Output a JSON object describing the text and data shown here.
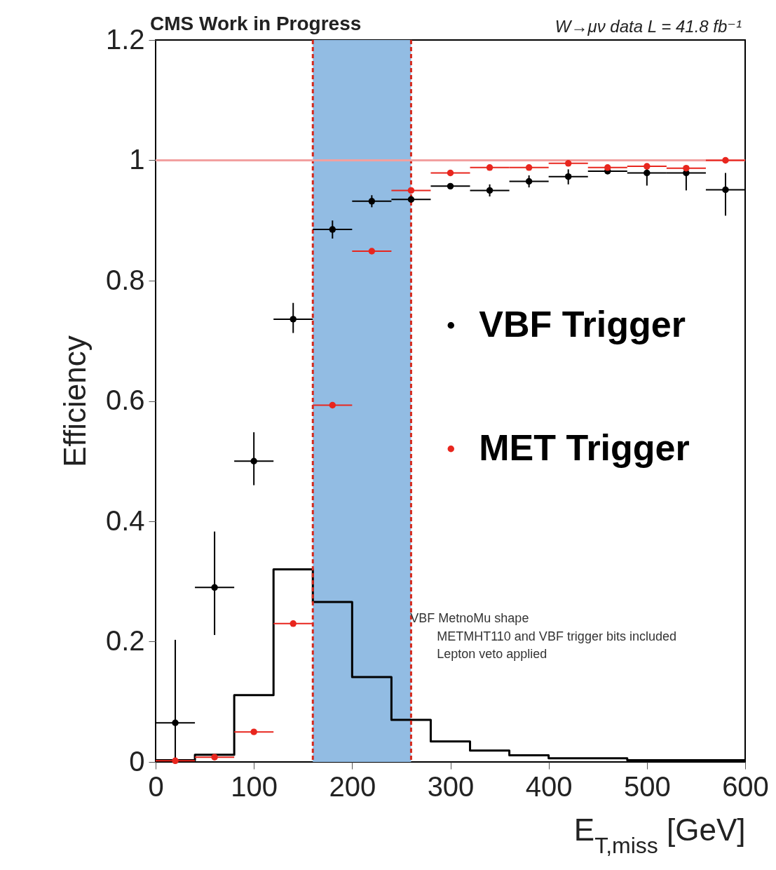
{
  "chart_data": {
    "type": "scatter",
    "title": "CMS Work in Progress",
    "subtitle": "W→μν data L = 41.8 fb⁻¹",
    "xlabel": "E$_{T,miss}$ [GeV]",
    "ylabel": "Efficiency",
    "xlim": [
      0,
      600
    ],
    "ylim": [
      0,
      1.2
    ],
    "xticks": [
      0,
      100,
      200,
      300,
      400,
      500,
      600
    ],
    "yticks": [
      0,
      0.2,
      0.4,
      0.6,
      0.8,
      1,
      1.2
    ],
    "legend": "right",
    "marker": "circle",
    "grid": false,
    "series": [
      {
        "name": "VBF Trigger",
        "color": "#000000",
        "x": [
          20,
          60,
          100,
          140,
          180,
          220,
          260,
          300,
          340,
          380,
          420,
          460,
          500,
          540,
          580
        ],
        "values": [
          0.065,
          0.29,
          0.5,
          0.736,
          0.885,
          0.932,
          0.935,
          0.957,
          0.95,
          0.965,
          0.973,
          0.982,
          0.979,
          0.979,
          0.951
        ],
        "errors": [
          [
            0,
            0.203
          ],
          [
            0.211,
            0.383
          ],
          [
            0.46,
            0.548
          ],
          [
            0.713,
            0.763
          ],
          [
            0.87,
            0.9
          ],
          [
            0.922,
            0.942
          ],
          null,
          null,
          [
            0.94,
            0.96
          ],
          [
            0.955,
            0.975
          ],
          [
            0.96,
            0.985
          ],
          null,
          [
            0.958,
            0.99
          ],
          [
            0.95,
            0.99
          ],
          [
            0.908,
            0.979
          ]
        ],
        "xerrors": [
          20,
          20,
          20,
          20,
          20,
          20,
          20,
          20,
          20,
          20,
          20,
          20,
          20,
          20,
          20
        ]
      },
      {
        "name": "MET Trigger",
        "color": "#e8261e",
        "x": [
          20,
          60,
          100,
          140,
          180,
          220,
          260,
          300,
          340,
          380,
          420,
          460,
          500,
          540,
          580
        ],
        "values": [
          0.002,
          0.008,
          0.05,
          0.23,
          0.593,
          0.849,
          0.95,
          0.979,
          0.988,
          0.988,
          0.995,
          0.988,
          0.99,
          0.987,
          1.0
        ],
        "xerrors": [
          20,
          20,
          20,
          20,
          20,
          20,
          20,
          20,
          20,
          20,
          20,
          20,
          20,
          20,
          20
        ]
      },
      {
        "type": "step",
        "marker": "none",
        "color": "#000000",
        "x": [
          0,
          40,
          80,
          120,
          160,
          200,
          240,
          280,
          320,
          360,
          400,
          480,
          600
        ],
        "values": [
          0.003,
          0.012,
          0.111,
          0.32,
          0.266,
          0.141,
          0.07,
          0.034,
          0.019,
          0.011,
          0.006,
          0.003,
          0.003
        ]
      }
    ],
    "bands": [
      {
        "axis": "x",
        "from": 160,
        "to": 260,
        "color": "#92bce3"
      }
    ],
    "ref_lines": [
      {
        "axis": "x",
        "value": 160,
        "color": "#d42a1e",
        "line_style": "dashed"
      },
      {
        "axis": "x",
        "value": 260,
        "color": "#d42a1e",
        "line_style": "dashed"
      },
      {
        "axis": "y",
        "value": 1,
        "color": "#f2a0a0",
        "line_style": "solid"
      }
    ],
    "annotations": [
      "VBF MetnoMu shape",
      "METMHT110 and VBF trigger bits included",
      "Lepton veto applied"
    ]
  }
}
